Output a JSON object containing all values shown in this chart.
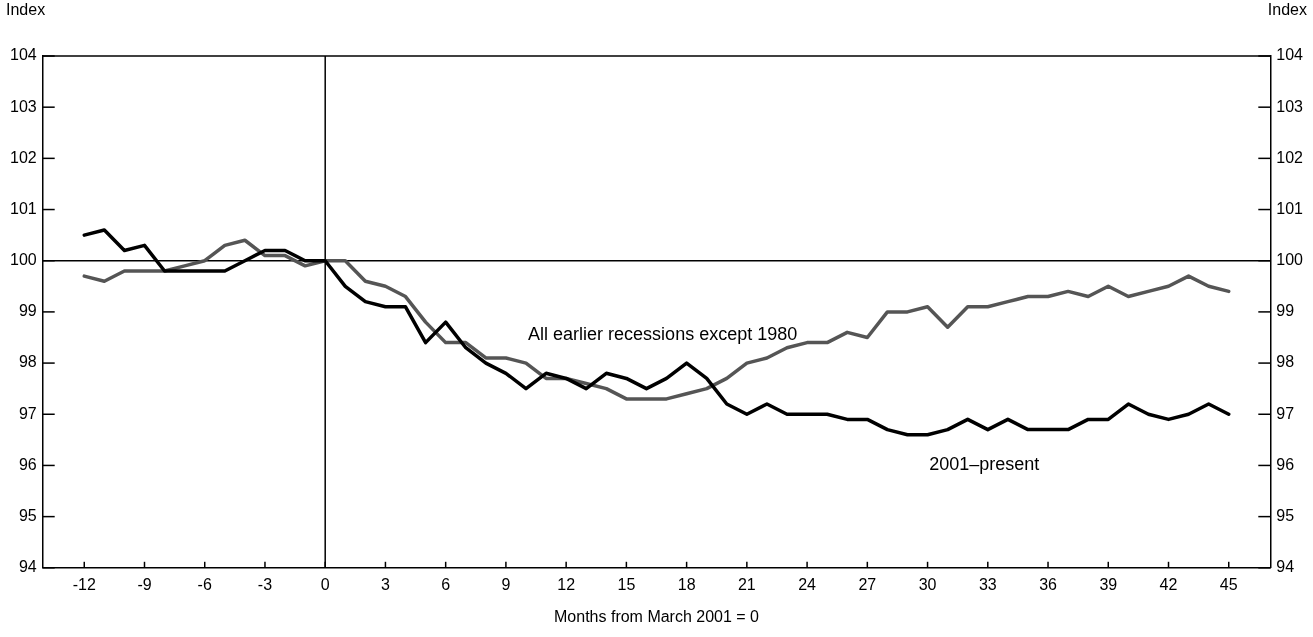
{
  "chart_data": {
    "type": "line",
    "xlabel": "Months from March 2001 = 0",
    "ylabel": "Index",
    "y2label": "Index",
    "x": [
      -12,
      -11,
      -10,
      -9,
      -8,
      -7,
      -6,
      -5,
      -4,
      -3,
      -2,
      -1,
      0,
      1,
      2,
      3,
      4,
      5,
      6,
      7,
      8,
      9,
      10,
      11,
      12,
      13,
      14,
      15,
      16,
      17,
      18,
      19,
      20,
      21,
      22,
      23,
      24,
      25,
      26,
      27,
      28,
      29,
      30,
      31,
      32,
      33,
      34,
      35,
      36,
      37,
      38,
      39,
      40,
      41,
      42,
      43,
      44,
      45
    ],
    "series": [
      {
        "name": "All earlier recessions except 1980",
        "color": "#555555",
        "values": [
          99.7,
          99.6,
          99.8,
          99.8,
          99.8,
          99.9,
          100.0,
          100.3,
          100.4,
          100.1,
          100.1,
          99.9,
          100.0,
          100.0,
          99.6,
          99.5,
          99.3,
          98.8,
          98.4,
          98.4,
          98.1,
          98.1,
          98.0,
          97.7,
          97.7,
          97.6,
          97.5,
          97.3,
          97.3,
          97.3,
          97.4,
          97.5,
          97.7,
          98.0,
          98.1,
          98.3,
          98.4,
          98.4,
          98.6,
          98.5,
          99.0,
          99.0,
          99.1,
          98.7,
          99.1,
          99.1,
          99.2,
          99.3,
          99.3,
          99.4,
          99.3,
          99.5,
          99.3,
          99.4,
          99.5,
          99.7,
          99.5,
          99.4
        ]
      },
      {
        "name": "2001–present",
        "color": "#000000",
        "values": [
          100.5,
          100.6,
          100.2,
          100.3,
          99.8,
          99.8,
          99.8,
          99.8,
          100.0,
          100.2,
          100.2,
          100.0,
          100.0,
          99.5,
          99.2,
          99.1,
          99.1,
          98.4,
          98.8,
          98.3,
          98.0,
          97.8,
          97.5,
          97.8,
          97.7,
          97.5,
          97.8,
          97.7,
          97.5,
          97.7,
          98.0,
          97.7,
          97.2,
          97.0,
          97.2,
          97.0,
          97.0,
          97.0,
          96.9,
          96.9,
          96.7,
          96.6,
          96.6,
          96.7,
          96.9,
          96.7,
          96.9,
          96.7,
          96.7,
          96.7,
          96.9,
          96.9,
          97.2,
          97.0,
          96.9,
          97.0,
          97.2,
          97.0
        ]
      }
    ],
    "xlim": [
      -14.07,
      47.07
    ],
    "xticks": [
      -12,
      -9,
      -6,
      -3,
      0,
      3,
      6,
      9,
      12,
      15,
      18,
      21,
      24,
      27,
      30,
      33,
      36,
      39,
      42,
      45
    ],
    "ylim": [
      94,
      104
    ],
    "yticks": [
      94,
      95,
      96,
      97,
      98,
      99,
      100,
      101,
      102,
      103,
      104
    ],
    "y2lim": [
      94,
      104
    ],
    "y2ticks": [
      94,
      95,
      96,
      97,
      98,
      99,
      100,
      101,
      102,
      103,
      104
    ],
    "ref_lines": [
      {
        "axis": "x",
        "value": 0,
        "color": "#000000"
      },
      {
        "axis": "y",
        "value": 100,
        "color": "#000000"
      }
    ],
    "grid": false,
    "legend": false,
    "marker": "none",
    "line_style": "solid"
  }
}
